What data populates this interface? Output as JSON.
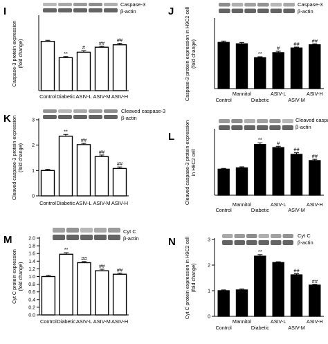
{
  "chart_data": [
    {
      "panel": "I",
      "type": "bar",
      "style": "white",
      "ylabel": "Caspase-3 protein expression\n(fold change)",
      "blot_labels": [
        "Caspase-3",
        "β-actin"
      ],
      "categories": [
        "Control",
        "Diabetic",
        "ASIV-L",
        "ASIV-M",
        "ASIV-H"
      ],
      "values": [
        1.0,
        0.67,
        0.78,
        0.88,
        0.93
      ],
      "errors": [
        0.02,
        0.02,
        0.03,
        0.02,
        0.03
      ],
      "annotations": [
        "",
        "**",
        "#",
        "##",
        "##"
      ],
      "ylim": [
        0,
        1.5
      ],
      "yticks": [],
      "yticklabels": []
    },
    {
      "panel": "J",
      "type": "bar",
      "style": "black",
      "ylabel": "Caspase-3 protein expression in H9C2 cell\n(fold change)",
      "blot_labels": [
        "Caspase-3",
        "β-actin"
      ],
      "categories": [
        "Control",
        "Mannitol",
        "Diabetic",
        "ASIV-L",
        "ASIV-M",
        "ASIV-H"
      ],
      "values": [
        1.0,
        0.97,
        0.67,
        0.78,
        0.88,
        0.95
      ],
      "errors": [
        0.03,
        0.03,
        0.02,
        0.03,
        0.02,
        0.02
      ],
      "annotations": [
        "",
        "",
        "**",
        "#",
        "##",
        "##"
      ],
      "ylim": [
        0,
        1.5
      ],
      "yticks": [],
      "yticklabels": []
    },
    {
      "panel": "K",
      "type": "bar",
      "style": "white",
      "ylabel": "Cleaved caspase-3 protein expression\n(fold change)",
      "blot_labels": [
        "Cleaved caspase-3",
        "β-actin"
      ],
      "categories": [
        "Control",
        "Diabetic",
        "ASIV-L",
        "ASIV-M",
        "ASIV-H"
      ],
      "values": [
        1.0,
        2.35,
        2.02,
        1.55,
        1.08
      ],
      "errors": [
        0.05,
        0.07,
        0.05,
        0.06,
        0.06
      ],
      "annotations": [
        "",
        "**",
        "##",
        "##",
        "##"
      ],
      "ylim": [
        0,
        3
      ],
      "yticks": [
        0,
        1,
        2,
        3
      ],
      "yticklabels": [
        "0",
        "1",
        "2",
        "3"
      ]
    },
    {
      "panel": "L",
      "type": "bar",
      "style": "black",
      "ylabel": "Cleaved caspase-3 protein expression\nin H9C2 cell",
      "blot_labels": [
        "Cleaved caspase-3",
        "β-actin"
      ],
      "categories": [
        "Control",
        "Mannitol",
        "Diabetic",
        "ASIV-L",
        "ASIV-M",
        "ASIV-H"
      ],
      "values": [
        1.0,
        1.05,
        1.95,
        1.83,
        1.57,
        1.33
      ],
      "errors": [
        0.03,
        0.04,
        0.06,
        0.05,
        0.06,
        0.05
      ],
      "annotations": [
        "",
        "",
        "**",
        "#",
        "##",
        "##"
      ],
      "ylim": [
        0,
        2.5
      ],
      "yticks": [],
      "yticklabels": []
    },
    {
      "panel": "M",
      "type": "bar",
      "style": "white",
      "ylabel": "Cyt C protein expression\n(fold change)",
      "blot_labels": [
        "Cyt C",
        "β-actin"
      ],
      "categories": [
        "Control",
        "Diabetic",
        "ASIV-L",
        "ASIV-M",
        "ASIV-H"
      ],
      "values": [
        1.0,
        1.58,
        1.36,
        1.15,
        1.06
      ],
      "errors": [
        0.03,
        0.04,
        0.03,
        0.04,
        0.03
      ],
      "annotations": [
        "",
        "**",
        "##",
        "##",
        "##"
      ],
      "ylim": [
        0,
        2.0
      ],
      "yticks": [
        0.0,
        0.2,
        0.4,
        0.6,
        0.8,
        1.0,
        1.2,
        1.4,
        1.6,
        1.8,
        2.0
      ],
      "yticklabels": [
        "0.0",
        "0.2",
        "0.4",
        "0.6",
        "0.8",
        "1.0",
        "1.2",
        "1.4",
        "1.6",
        "1.8",
        "2.0"
      ]
    },
    {
      "panel": "N",
      "type": "bar",
      "style": "black",
      "ylabel": "Cyt C protein expression in H9C2 cell\n(fold change)",
      "blot_labels": [
        "Cyt C",
        "β-actin"
      ],
      "categories": [
        "Control",
        "Mannitol",
        "Diabetic",
        "ASIV-L",
        "ASIV-M",
        "ASIV-H"
      ],
      "values": [
        1.0,
        1.03,
        2.35,
        2.1,
        1.62,
        1.22
      ],
      "errors": [
        0.03,
        0.04,
        0.06,
        0.03,
        0.04,
        0.03
      ],
      "annotations": [
        "",
        "",
        "**",
        "",
        "##",
        "##"
      ],
      "ylim": [
        0,
        3
      ],
      "yticks": [
        0,
        1,
        2,
        3
      ],
      "yticklabels": [
        "0",
        "1",
        "2",
        "3"
      ]
    }
  ]
}
